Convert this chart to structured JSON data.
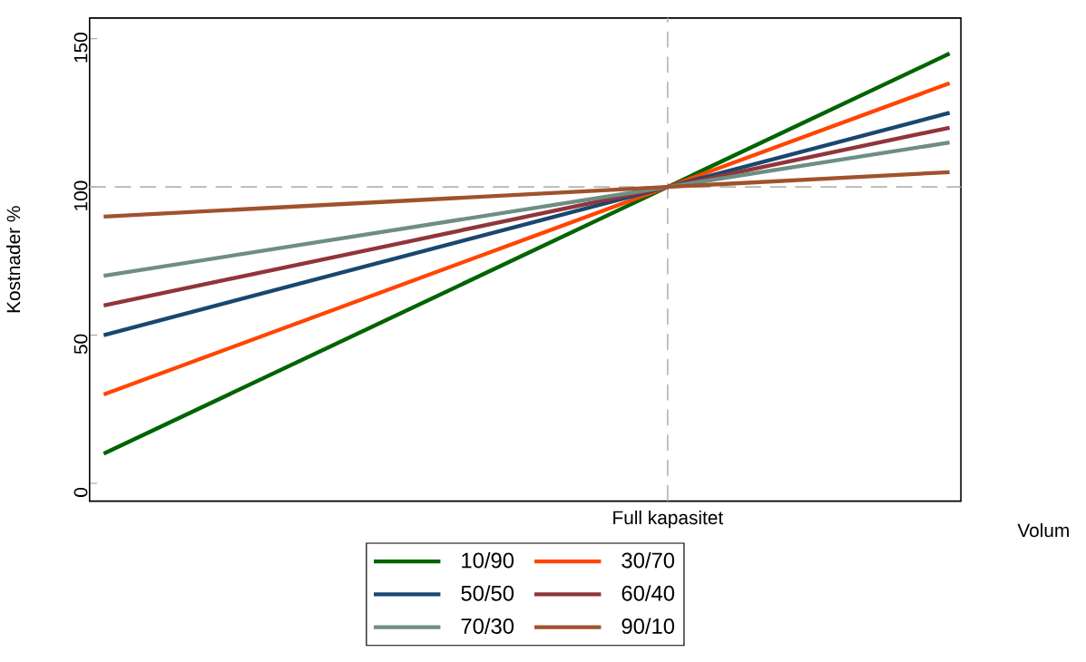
{
  "chart_data": {
    "type": "line",
    "xlabel": "Volum",
    "ylabel": "Kostnader %",
    "categories": [
      null,
      null,
      "Full kapasitet",
      null
    ],
    "ylim": [
      -6,
      157
    ],
    "yticks": [
      0,
      50,
      100,
      150
    ],
    "legend": "bottom",
    "ref_lines": [
      {
        "axis": "x",
        "value": "Full kapasitet",
        "color": "#b4b4b4",
        "line_style": "dashed"
      },
      {
        "axis": "y",
        "value": 100,
        "color": "#b4b4b4",
        "line_style": "dashed"
      }
    ],
    "series": [
      {
        "name": "10/90",
        "color": "#006400",
        "values": [
          10,
          55,
          100,
          145
        ]
      },
      {
        "name": "30/70",
        "color": "#ff4500",
        "values": [
          30,
          65,
          100,
          135
        ]
      },
      {
        "name": "50/50",
        "color": "#1a476f",
        "values": [
          50,
          75,
          100,
          125
        ]
      },
      {
        "name": "60/40",
        "color": "#90353b",
        "values": [
          60,
          80,
          100,
          120
        ]
      },
      {
        "name": "70/30",
        "color": "#6e8e84",
        "values": [
          70,
          85,
          100,
          115
        ]
      },
      {
        "name": "90/10",
        "color": "#a0522d",
        "values": [
          90,
          95,
          100,
          105
        ]
      }
    ]
  }
}
